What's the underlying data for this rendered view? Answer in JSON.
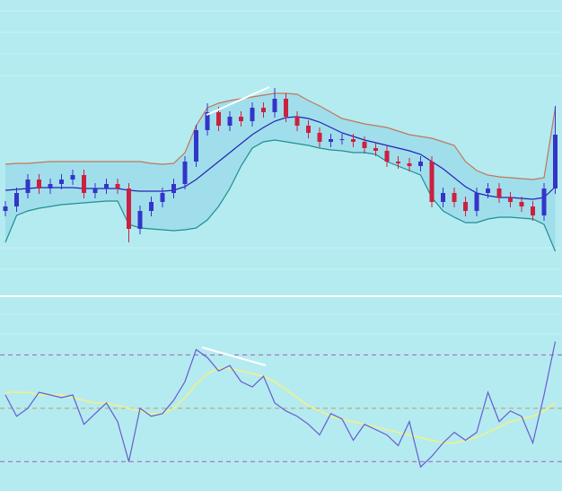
{
  "chart_data": {
    "type": "candlestick",
    "ylim": [
      0,
      330
    ],
    "up_color": "#3434c8",
    "down_color": "#cc2040",
    "open": [
      95,
      100,
      115,
      130,
      120,
      125,
      130,
      135,
      115,
      120,
      125,
      120,
      75,
      95,
      105,
      115,
      125,
      150,
      185,
      205,
      190,
      200,
      195,
      210,
      205,
      220,
      200,
      190,
      182,
      172,
      175,
      175,
      172,
      165,
      162,
      150,
      148,
      145,
      150,
      105,
      115,
      105,
      95,
      115,
      120,
      110,
      105,
      100,
      90,
      120
    ],
    "high": [
      106,
      121,
      136,
      136,
      131,
      136,
      141,
      141,
      126,
      131,
      131,
      126,
      101,
      111,
      121,
      131,
      156,
      191,
      215,
      211,
      206,
      206,
      216,
      216,
      232,
      226,
      206,
      196,
      188,
      181,
      181,
      181,
      178,
      171,
      168,
      156,
      154,
      156,
      156,
      121,
      121,
      111,
      121,
      126,
      126,
      116,
      111,
      106,
      126,
      212
    ],
    "low": [
      89,
      94,
      109,
      114,
      114,
      119,
      124,
      109,
      109,
      114,
      114,
      60,
      69,
      89,
      99,
      109,
      119,
      144,
      179,
      184,
      184,
      189,
      189,
      199,
      199,
      194,
      184,
      176,
      166,
      166,
      169,
      166,
      159,
      156,
      144,
      142,
      139,
      139,
      99,
      99,
      99,
      89,
      89,
      109,
      104,
      99,
      94,
      84,
      84,
      114
    ],
    "close": [
      100,
      115,
      130,
      120,
      125,
      130,
      135,
      115,
      120,
      125,
      120,
      75,
      95,
      105,
      115,
      125,
      150,
      185,
      205,
      190,
      200,
      195,
      210,
      205,
      220,
      200,
      190,
      182,
      172,
      175,
      175,
      172,
      165,
      162,
      150,
      148,
      145,
      150,
      105,
      115,
      105,
      95,
      115,
      120,
      110,
      105,
      100,
      90,
      120,
      180
    ],
    "band_fill": "#8fd3ea",
    "bands": [
      {
        "color": "#c07858",
        "values": [
          147,
          148,
          148,
          149,
          150,
          150,
          150,
          150,
          150,
          150,
          150,
          150,
          150,
          148,
          147,
          148,
          160,
          190,
          210,
          215,
          218,
          220,
          222,
          224,
          226,
          226,
          225,
          218,
          212,
          205,
          198,
          195,
          192,
          190,
          188,
          184,
          180,
          178,
          176,
          172,
          168,
          150,
          140,
          135,
          133,
          132,
          131,
          130,
          132,
          210
        ]
      },
      {
        "color": "#2424b4",
        "values": [
          118,
          119,
          120,
          121,
          121,
          121,
          121,
          120,
          120,
          120,
          120,
          118,
          117,
          117,
          117,
          118,
          122,
          130,
          140,
          150,
          160,
          170,
          180,
          188,
          195,
          199,
          200,
          198,
          194,
          188,
          182,
          178,
          174,
          171,
          168,
          165,
          162,
          158,
          150,
          142,
          132,
          122,
          115,
          112,
          110,
          110,
          109,
          108,
          110,
          122
        ]
      },
      {
        "color": "#1f9090",
        "values": [
          60,
          90,
          95,
          98,
          100,
          102,
          103,
          104,
          105,
          106,
          106,
          80,
          76,
          75,
          74,
          73,
          74,
          76,
          85,
          100,
          120,
          145,
          165,
          172,
          174,
          172,
          170,
          168,
          165,
          163,
          162,
          160,
          160,
          158,
          150,
          145,
          140,
          135,
          110,
          95,
          88,
          82,
          82,
          86,
          88,
          88,
          87,
          86,
          80,
          50
        ]
      }
    ],
    "rsi": {
      "y2lim": [
        19,
        92
      ],
      "levels": [
        70,
        50,
        30
      ],
      "level_colors": [
        "#a060b8",
        "#b8a060",
        "#a060b8"
      ],
      "series": [
        {
          "color": "#f0f08a",
          "values": [
            56,
            56,
            56,
            55,
            55,
            55,
            54,
            53,
            52,
            52,
            51,
            50,
            49,
            48,
            48,
            50,
            54,
            59,
            63,
            65,
            65,
            64,
            63,
            62,
            60,
            57,
            54,
            51,
            49,
            47,
            46,
            45,
            44,
            43,
            42,
            41,
            40,
            39,
            38,
            37,
            37,
            38,
            39,
            41,
            43,
            45,
            46,
            47,
            49,
            52
          ]
        },
        {
          "color": "#6a5ad0",
          "values": [
            55,
            47,
            50,
            56,
            55,
            54,
            55,
            44,
            48,
            52,
            45,
            30,
            50,
            47,
            48,
            53,
            60,
            72,
            69,
            64,
            66,
            60,
            58,
            62,
            52,
            49,
            47,
            44,
            40,
            48,
            46,
            38,
            44,
            42,
            40,
            36,
            45,
            28,
            32,
            37,
            41,
            38,
            41,
            56,
            45,
            49,
            47,
            37,
            55,
            75
          ]
        }
      ]
    }
  }
}
